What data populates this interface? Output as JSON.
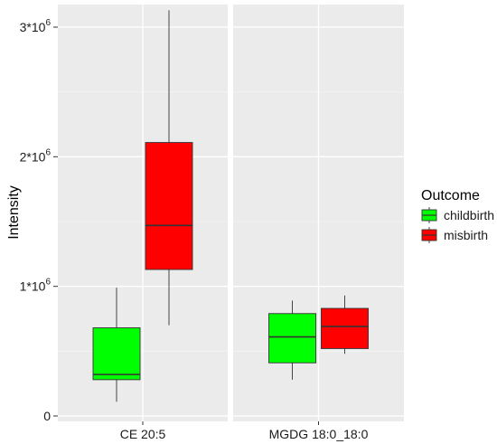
{
  "chart_data": {
    "type": "boxplot",
    "ylabel": "Intensity",
    "xlabel": "",
    "ylim": [
      -30000,
      3330000
    ],
    "y_ticks": [
      {
        "value": 0,
        "label": "0"
      },
      {
        "value": 1000000,
        "label": "1*10",
        "exp": "6"
      },
      {
        "value": 2000000,
        "label": "2*10",
        "exp": "6"
      },
      {
        "value": 3000000,
        "label": "3*10",
        "exp": "6"
      }
    ],
    "facets": [
      "CE 20:5",
      "MGDG 18:0_18:0"
    ],
    "legend": {
      "title": "Outcome",
      "position": "right",
      "entries": [
        {
          "label": "childbirth",
          "color": "#00ff00"
        },
        {
          "label": "misbirth",
          "color": "#ff0000"
        }
      ]
    },
    "series": [
      {
        "name": "childbirth",
        "color": "#00ff00",
        "boxes": [
          {
            "facet": "CE 20:5",
            "min": 110000,
            "q1": 280000,
            "median": 320000,
            "q3": 680000,
            "max": 990000
          },
          {
            "facet": "MGDG 18:0_18:0",
            "min": 280000,
            "q1": 410000,
            "median": 610000,
            "q3": 790000,
            "max": 890000
          }
        ]
      },
      {
        "name": "misbirth",
        "color": "#ff0000",
        "boxes": [
          {
            "facet": "CE 20:5",
            "min": 700000,
            "q1": 1130000,
            "median": 1470000,
            "q3": 2110000,
            "max": 3130000
          },
          {
            "facet": "MGDG 18:0_18:0",
            "min": 480000,
            "q1": 520000,
            "median": 690000,
            "q3": 830000,
            "max": 930000
          }
        ]
      }
    ],
    "grid": true
  }
}
